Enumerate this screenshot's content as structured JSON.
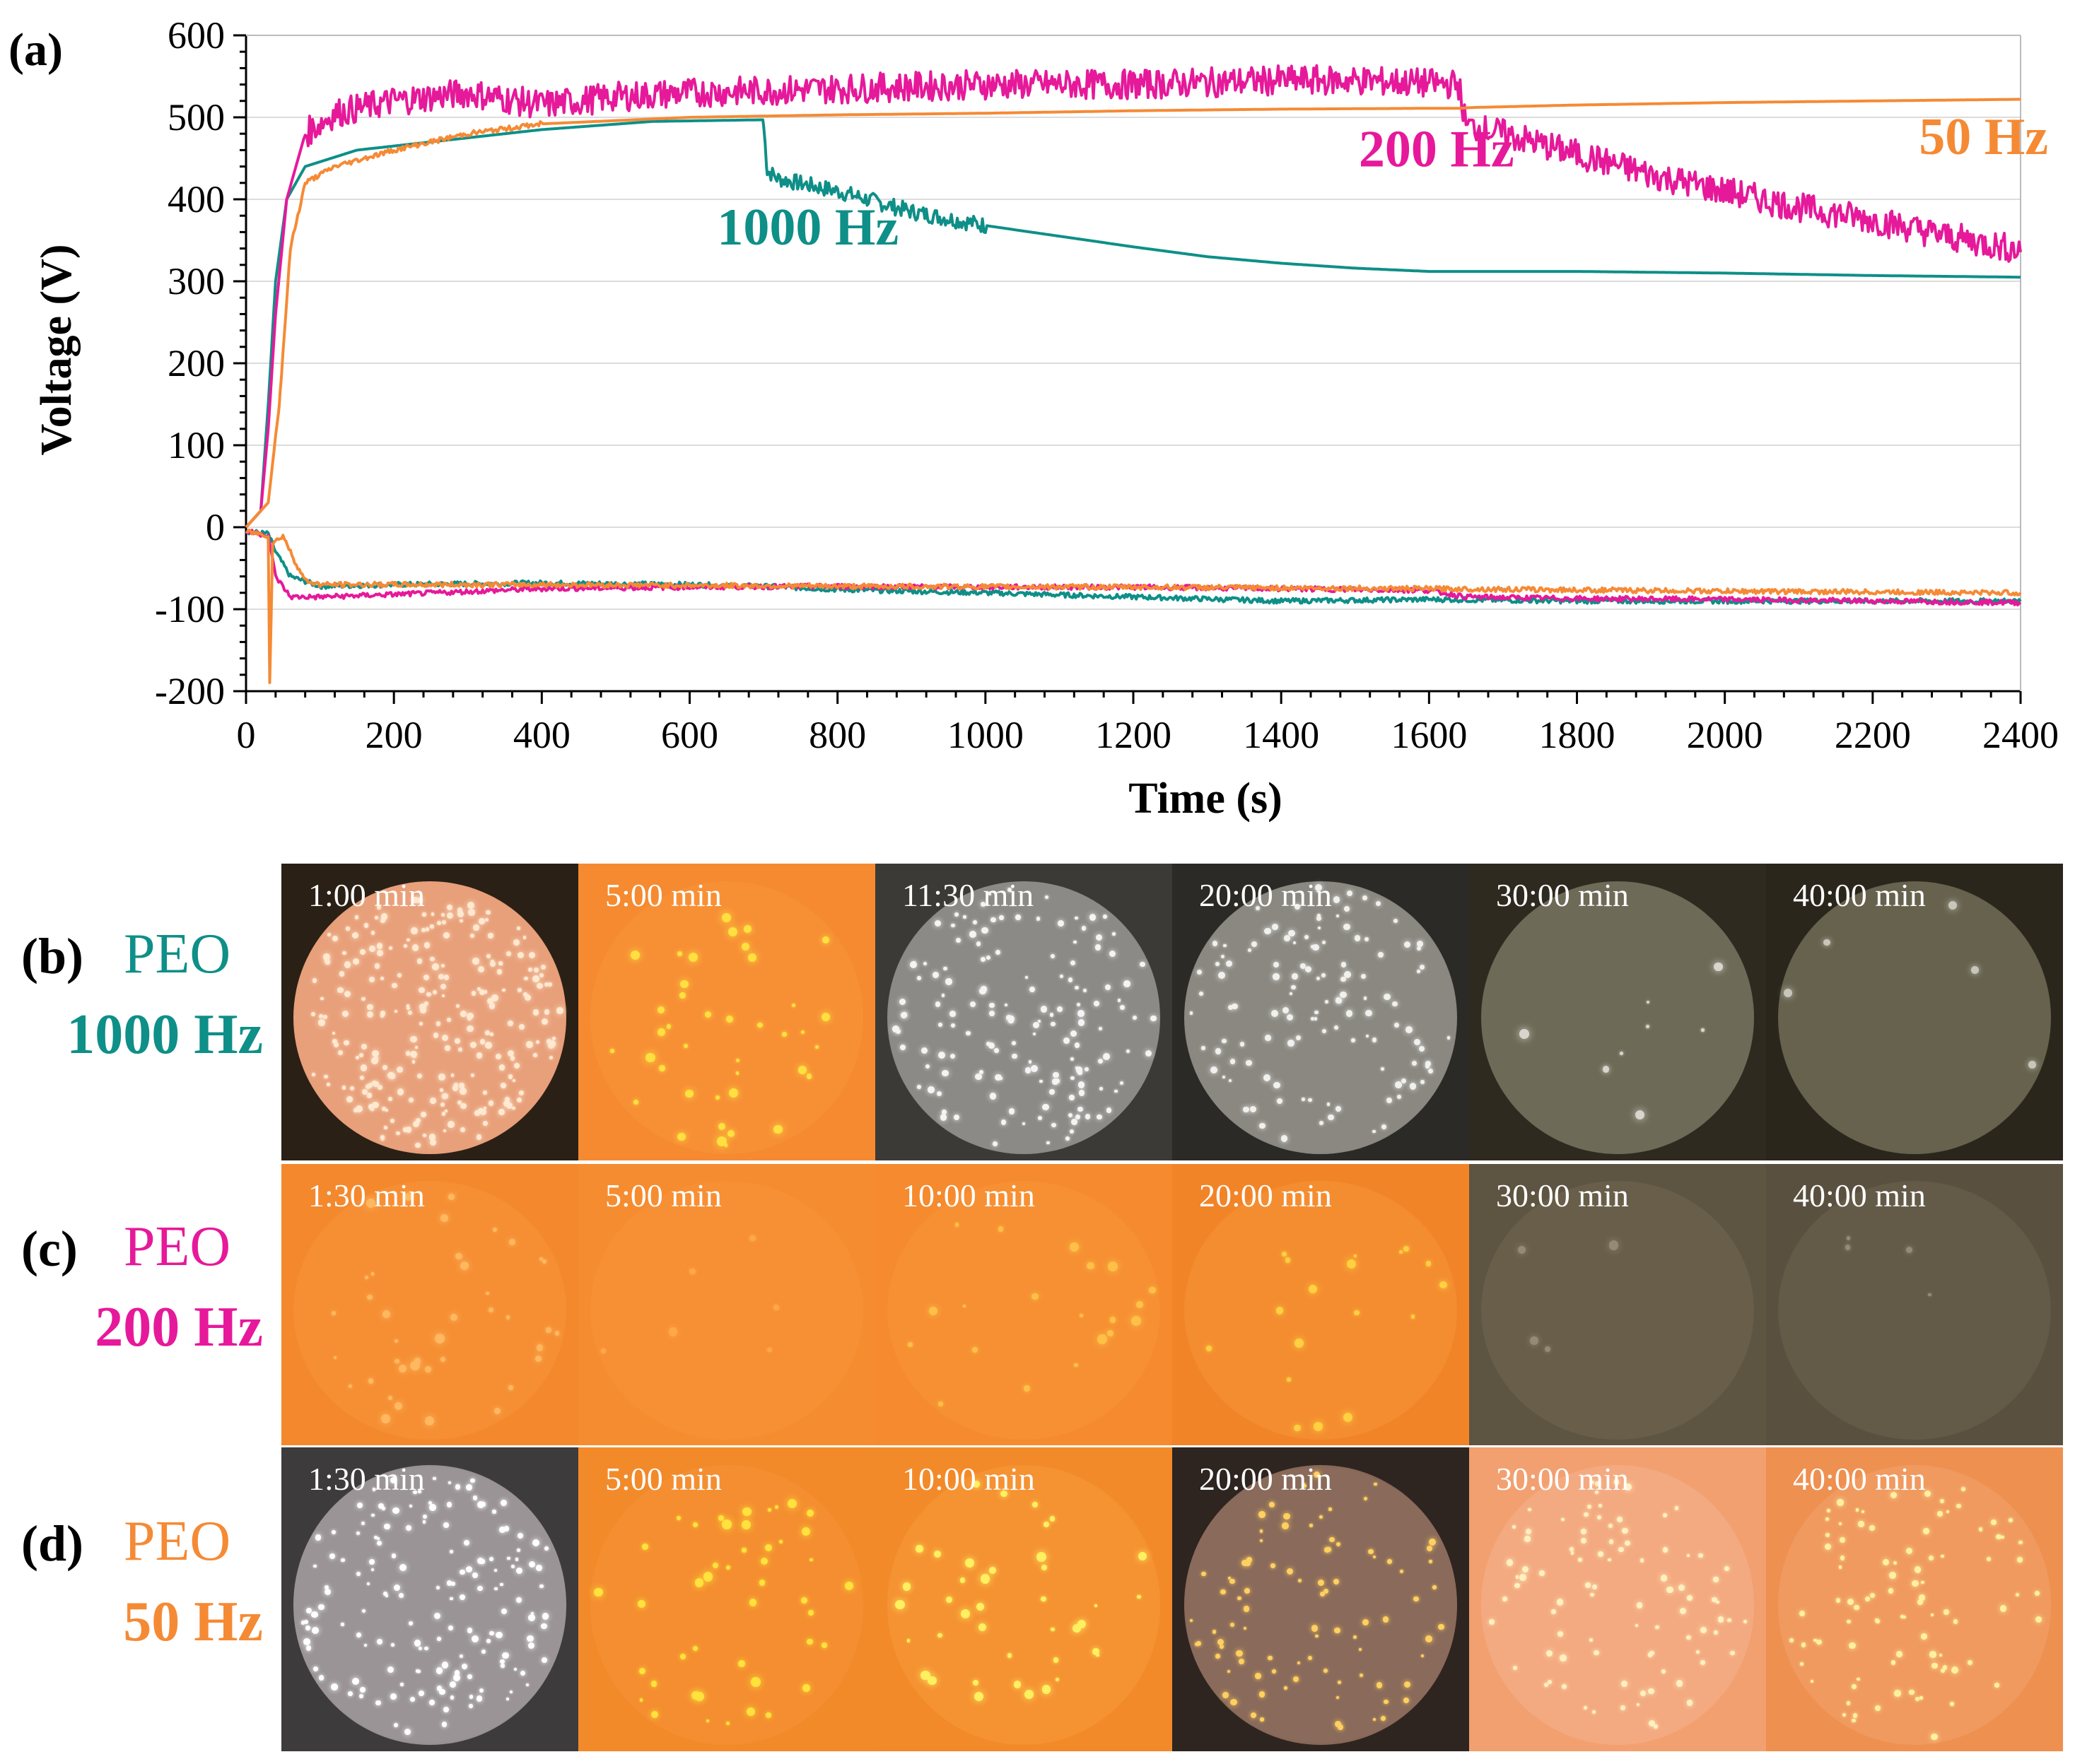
{
  "chart_data": {
    "type": "line",
    "panel_label": "(a)",
    "title": "",
    "xlabel": "Time (s)",
    "ylabel": "Voltage (V)",
    "xlim": [
      0,
      2400
    ],
    "ylim": [
      -200,
      600
    ],
    "xticks": [
      0,
      200,
      400,
      600,
      800,
      1000,
      1200,
      1400,
      1600,
      1800,
      2000,
      2200,
      2400
    ],
    "yticks": [
      -200,
      -100,
      0,
      100,
      200,
      300,
      400,
      500,
      600
    ],
    "grid": "horizontal",
    "series": [
      {
        "name": "1000 Hz",
        "color": "#0e8f88",
        "noise": 10,
        "noise_start": 700,
        "noise_end": 1000,
        "positive": [
          [
            0,
            0
          ],
          [
            20,
            20
          ],
          [
            30,
            150
          ],
          [
            40,
            300
          ],
          [
            55,
            400
          ],
          [
            80,
            440
          ],
          [
            150,
            460
          ],
          [
            250,
            470
          ],
          [
            400,
            485
          ],
          [
            550,
            495
          ],
          [
            699,
            497
          ],
          [
            700,
            490
          ],
          [
            705,
            435
          ],
          [
            720,
            425
          ],
          [
            800,
            410
          ],
          [
            900,
            385
          ],
          [
            1000,
            368
          ],
          [
            1100,
            355
          ],
          [
            1200,
            342
          ],
          [
            1300,
            330
          ],
          [
            1400,
            322
          ],
          [
            1500,
            316
          ],
          [
            1600,
            312
          ],
          [
            1800,
            312
          ],
          [
            2000,
            310
          ],
          [
            2200,
            307
          ],
          [
            2400,
            305
          ]
        ],
        "negative": [
          [
            0,
            -5
          ],
          [
            30,
            -8
          ],
          [
            40,
            -30
          ],
          [
            60,
            -60
          ],
          [
            100,
            -72
          ],
          [
            200,
            -70
          ],
          [
            400,
            -68
          ],
          [
            600,
            -70
          ],
          [
            700,
            -72
          ],
          [
            800,
            -76
          ],
          [
            1000,
            -80
          ],
          [
            1200,
            -85
          ],
          [
            1400,
            -90
          ],
          [
            1600,
            -88
          ],
          [
            1800,
            -90
          ],
          [
            2000,
            -90
          ],
          [
            2200,
            -90
          ],
          [
            2400,
            -90
          ]
        ]
      },
      {
        "name": "200 Hz",
        "color": "#e6199a",
        "noise": 18,
        "noise_start": 80,
        "noise_end": 2400,
        "positive": [
          [
            0,
            0
          ],
          [
            20,
            20
          ],
          [
            30,
            120
          ],
          [
            40,
            260
          ],
          [
            55,
            400
          ],
          [
            80,
            480
          ],
          [
            120,
            505
          ],
          [
            200,
            520
          ],
          [
            300,
            530
          ],
          [
            400,
            515
          ],
          [
            500,
            525
          ],
          [
            600,
            530
          ],
          [
            800,
            535
          ],
          [
            1000,
            540
          ],
          [
            1200,
            540
          ],
          [
            1400,
            545
          ],
          [
            1500,
            545
          ],
          [
            1640,
            540
          ],
          [
            1650,
            490
          ],
          [
            1700,
            480
          ],
          [
            1800,
            455
          ],
          [
            1900,
            430
          ],
          [
            2000,
            410
          ],
          [
            2100,
            390
          ],
          [
            2200,
            375
          ],
          [
            2300,
            355
          ],
          [
            2400,
            338
          ]
        ],
        "negative": [
          [
            0,
            -5
          ],
          [
            30,
            -10
          ],
          [
            40,
            -60
          ],
          [
            60,
            -85
          ],
          [
            100,
            -85
          ],
          [
            200,
            -82
          ],
          [
            400,
            -75
          ],
          [
            600,
            -73
          ],
          [
            800,
            -72
          ],
          [
            1000,
            -73
          ],
          [
            1200,
            -73
          ],
          [
            1400,
            -75
          ],
          [
            1600,
            -77
          ],
          [
            1650,
            -85
          ],
          [
            1800,
            -87
          ],
          [
            2000,
            -88
          ],
          [
            2200,
            -90
          ],
          [
            2400,
            -92
          ]
        ]
      },
      {
        "name": "50 Hz",
        "color": "#f58a35",
        "noise": 3,
        "noise_start": 40,
        "noise_end": 400,
        "positive": [
          [
            0,
            0
          ],
          [
            30,
            30
          ],
          [
            45,
            150
          ],
          [
            60,
            340
          ],
          [
            80,
            420
          ],
          [
            120,
            440
          ],
          [
            200,
            460
          ],
          [
            300,
            480
          ],
          [
            400,
            492
          ],
          [
            600,
            500
          ],
          [
            800,
            503
          ],
          [
            1000,
            505
          ],
          [
            1200,
            508
          ],
          [
            1400,
            510
          ],
          [
            1600,
            511
          ],
          [
            1640,
            511
          ],
          [
            1660,
            512
          ],
          [
            1800,
            515
          ],
          [
            2000,
            518
          ],
          [
            2200,
            520
          ],
          [
            2400,
            522
          ]
        ],
        "negative": [
          [
            0,
            -5
          ],
          [
            30,
            -10
          ],
          [
            32,
            -190
          ],
          [
            36,
            -20
          ],
          [
            50,
            -10
          ],
          [
            65,
            -40
          ],
          [
            80,
            -65
          ],
          [
            100,
            -70
          ],
          [
            400,
            -70
          ],
          [
            800,
            -72
          ],
          [
            1200,
            -73
          ],
          [
            1600,
            -75
          ],
          [
            2000,
            -78
          ],
          [
            2400,
            -80
          ]
        ]
      }
    ],
    "annotations": [
      {
        "text": "1000 Hz",
        "x": 760,
        "y": 345,
        "color": "#0e8f88"
      },
      {
        "text": "200  Hz",
        "x": 1610,
        "y": 440,
        "color": "#e6199a"
      },
      {
        "text": "50 Hz",
        "x": 2350,
        "y": 455,
        "color": "#f58a35"
      }
    ]
  },
  "micrographs": [
    {
      "panel_label": "(b)",
      "name": "PEO",
      "freq": "1000 Hz",
      "color": "#0e8f88",
      "frames": [
        {
          "time": "1:00 min",
          "bg": "#2a2016",
          "disc": "#e8a07a",
          "spark": "#ffe8d0",
          "sparks": 260
        },
        {
          "time": "5:00 min",
          "bg": "#f58a30",
          "disc": "#f79035",
          "spark": "#ffe040",
          "sparks": 40
        },
        {
          "time": "11:30 min",
          "bg": "#3c3a36",
          "disc": "#8c8a86",
          "spark": "#f4f4f4",
          "sparks": 150
        },
        {
          "time": "20:00 min",
          "bg": "#2c2a26",
          "disc": "#8a8880",
          "spark": "#f0f0ee",
          "sparks": 120
        },
        {
          "time": "30:00 min",
          "bg": "#2e2a20",
          "disc": "#6e6a58",
          "spark": "#d8d6cc",
          "sparks": 8
        },
        {
          "time": "40:00 min",
          "bg": "#2a261c",
          "disc": "#66624e",
          "spark": "#c8c6ba",
          "sparks": 5
        }
      ]
    },
    {
      "panel_label": "(c)",
      "name": "PEO",
      "freq": "200 Hz",
      "color": "#e6199a",
      "frames": [
        {
          "time": "1:30 min",
          "bg": "#f4882c",
          "disc": "#f68f34",
          "spark": "#ffb860",
          "sparks": 40
        },
        {
          "time": "5:00 min",
          "bg": "#f68c30",
          "disc": "#f78f34",
          "spark": "#ffa84a",
          "sparks": 6
        },
        {
          "time": "10:00 min",
          "bg": "#f58a2e",
          "disc": "#f69033",
          "spark": "#ffc048",
          "sparks": 20
        },
        {
          "time": "20:00 min",
          "bg": "#f28428",
          "disc": "#f48d30",
          "spark": "#ffd040",
          "sparks": 18
        },
        {
          "time": "30:00 min",
          "bg": "#5e5442",
          "disc": "#685e4a",
          "spark": "#948a78",
          "sparks": 4
        },
        {
          "time": "40:00 min",
          "bg": "#5a5040",
          "disc": "#645a48",
          "spark": "#948a78",
          "sparks": 4
        }
      ]
    },
    {
      "panel_label": "(d)",
      "name": "PEO",
      "freq": "50 Hz",
      "color": "#f58a35",
      "frames": [
        {
          "time": "1:30 min",
          "bg": "#3e3b3c",
          "disc": "#9a9496",
          "spark": "#ffffff",
          "sparks": 160
        },
        {
          "time": "5:00 min",
          "bg": "#f28a2a",
          "disc": "#f48e30",
          "spark": "#ffe23c",
          "sparks": 45
        },
        {
          "time": "10:00 min",
          "bg": "#f38a2a",
          "disc": "#f59232",
          "spark": "#fff060",
          "sparks": 40
        },
        {
          "time": "20:00 min",
          "bg": "#2e2520",
          "disc": "#8a6a5a",
          "spark": "#ffd060",
          "sparks": 90
        },
        {
          "time": "30:00 min",
          "bg": "#f2a070",
          "disc": "#f4aa80",
          "spark": "#fff0c0",
          "sparks": 90
        },
        {
          "time": "40:00 min",
          "bg": "#ee9050",
          "disc": "#f09a60",
          "spark": "#fff0a0",
          "sparks": 90
        }
      ]
    }
  ]
}
